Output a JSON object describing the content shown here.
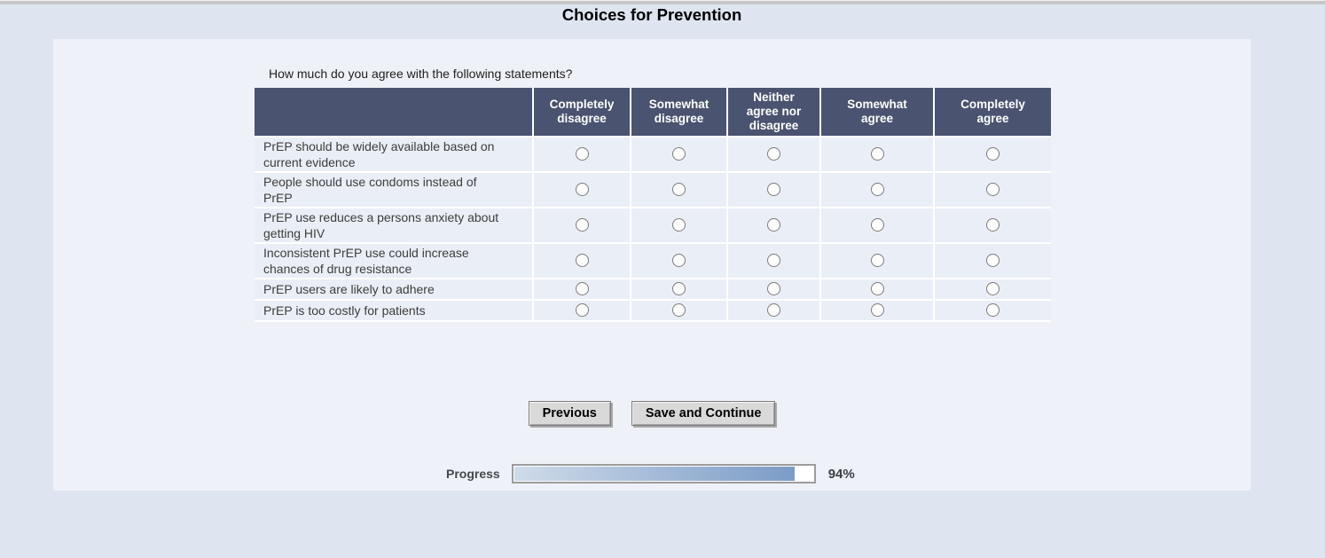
{
  "page": {
    "title": "Choices for Prevention"
  },
  "survey": {
    "question": "How much do you agree with the following statements?",
    "columns": [
      "Completely\ndisagree",
      "Somewhat\ndisagree",
      "Neither\nagree nor\ndisagree",
      "Somewhat\nagree",
      "Completely\nagree"
    ],
    "rows": [
      "PrEP should be widely available based on\ncurrent evidence",
      "People should use condoms instead of\nPrEP",
      "PrEP use reduces a persons anxiety about\ngetting HIV",
      "Inconsistent PrEP use could increase\nchances of drug resistance",
      "PrEP users are likely to adhere",
      "PrEP is too costly for patients"
    ]
  },
  "buttons": {
    "previous": "Previous",
    "save_and_continue": "Save and Continue"
  },
  "progress": {
    "label": "Progress",
    "percent": 94,
    "percent_text": "94%"
  },
  "colors": {
    "page_background": "#dee5f1",
    "panel_background": "#eef1f7",
    "table_header_background": "#4a5370",
    "table_row_background": "#eaeef6",
    "progress_fill_start": "#cfdbe9",
    "progress_fill_end": "#7b9cc7"
  }
}
